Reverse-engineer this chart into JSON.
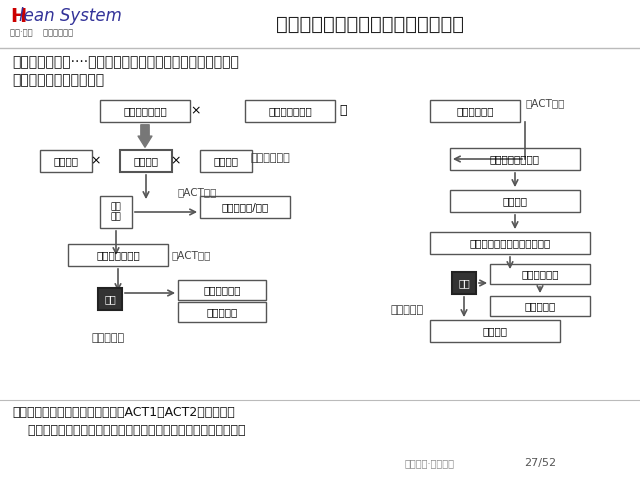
{
  "title": "１０、自工序完结的推进方法（６）",
  "logo_text1": "Hlean System",
  "logo_text2": "幸福·精益    高效企业系统",
  "subtitle_line1": "＜发掘改善点＞····要发掘管理上和技术上的不足，从而寻找",
  "subtitle_line2": "改善机会，形成改善课题",
  "footer_line1": "以自工序完结为目的的改善活动（ACT1、ACT2）的目的：",
  "footer_line2": "    通过改善作业条件和管理方法，来提高生产工序的维持管理水平。",
  "page_num": "27/52",
  "bg_color": "#ffffff",
  "header_bg": "#ffffff",
  "header_line_color": "#cccccc",
  "box_border": "#555555",
  "arrow_color": "#555555",
  "kaizen_bg": "#333333",
  "kaizen_text": "#ffffff",
  "act2_right_color": "#888888",
  "title_color": "#222222",
  "red_color": "#cc0000",
  "top_box1": "良品条件整备率",
  "top_box2": "标准作业遵守率",
  "top_box3": "自工程完结度",
  "top_mul1": "×",
  "top_eq": "＝",
  "left_boxes": [
    "设计要件",
    "工艺要件",
    "制造要件"
  ],
  "left_mul": "×",
  "factory_label": "工厂级的改善",
  "act1_label": "＊ACT．１",
  "act2_label_left": "＊ACT．２",
  "act2_label_right": "＊ACT．２",
  "keti_box": "课题\n要件",
  "feedback_box": "反馈给设计/工艺",
  "xianchangbox": "现场保证度提高",
  "kaizen_box_left": "改善",
  "operation_box": "作业方法改善",
  "tools_box": "工具等改善",
  "workshop_label": "车间级改善",
  "right_box1": "各工库遵守率确认",
  "right_box2": "课题提出",
  "right_box3": "以班为单位开展进行改善活动",
  "kaizen_box_right": "改善",
  "right_box4": "确定良品条件",
  "right_box5": "修改要领书",
  "right_box6": "团队强化",
  "banzulevel": "班组级改善"
}
